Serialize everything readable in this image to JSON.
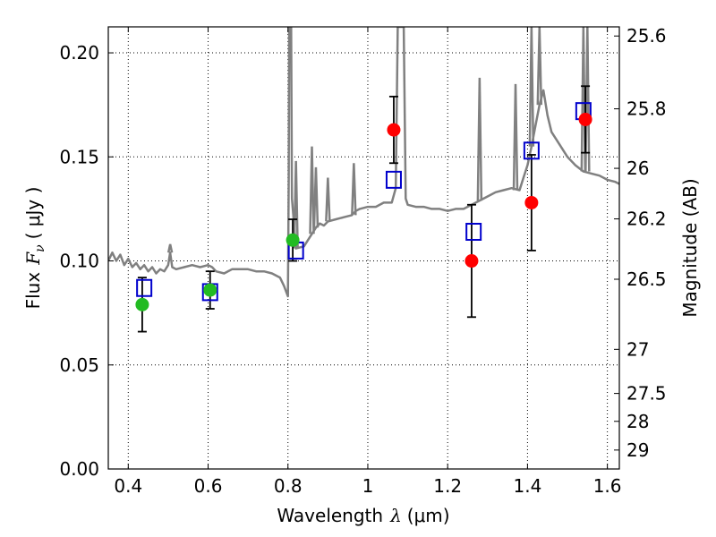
{
  "chart_data": {
    "type": "scatter",
    "xlabel": "Wavelength",
    "xlabel_symbol": "λ",
    "xlabel_unit": "(μm)",
    "ylabel": "Flux",
    "ylabel_symbol": "F",
    "ylabel_subscript": "ν",
    "ylabel_unit": "( μJy )",
    "y2label": "Magnitude (AB)",
    "xlim": [
      0.35,
      1.63
    ],
    "ylim": [
      0.0,
      0.2125
    ],
    "grid": true,
    "x_ticks": [
      0.4,
      0.6,
      0.8,
      1.0,
      1.2,
      1.4,
      1.6
    ],
    "x_tick_labels": [
      "0.4",
      "0.6",
      "0.8",
      "1",
      "1.2",
      "1.4",
      "1.6"
    ],
    "y_ticks": [
      0.0,
      0.05,
      0.1,
      0.15,
      0.2
    ],
    "y_tick_labels": [
      "0.00",
      "0.05",
      "0.10",
      "0.15",
      "0.20"
    ],
    "y2_ticks": [
      {
        "label": "25.6",
        "flux": 0.2081
      },
      {
        "label": "25.8",
        "flux": 0.1731
      },
      {
        "label": "26",
        "flux": 0.1445
      },
      {
        "label": "26.2",
        "flux": 0.1202
      },
      {
        "label": "26.5",
        "flux": 0.0912
      },
      {
        "label": "27",
        "flux": 0.0575
      },
      {
        "label": "27.5",
        "flux": 0.0363
      },
      {
        "label": "28",
        "flux": 0.0229
      },
      {
        "label": "29",
        "flux": 0.0091
      }
    ],
    "series": [
      {
        "name": "model spectrum",
        "kind": "line",
        "color": "#808080",
        "points": [
          [
            0.35,
            0.1
          ],
          [
            0.36,
            0.104
          ],
          [
            0.37,
            0.1
          ],
          [
            0.38,
            0.103
          ],
          [
            0.39,
            0.098
          ],
          [
            0.4,
            0.101
          ],
          [
            0.41,
            0.097
          ],
          [
            0.42,
            0.099
          ],
          [
            0.43,
            0.096
          ],
          [
            0.44,
            0.098
          ],
          [
            0.45,
            0.095
          ],
          [
            0.46,
            0.097
          ],
          [
            0.47,
            0.094
          ],
          [
            0.48,
            0.096
          ],
          [
            0.49,
            0.095
          ],
          [
            0.5,
            0.098
          ],
          [
            0.505,
            0.104
          ],
          [
            0.51,
            0.097
          ],
          [
            0.52,
            0.096
          ],
          [
            0.54,
            0.097
          ],
          [
            0.56,
            0.098
          ],
          [
            0.58,
            0.097
          ],
          [
            0.6,
            0.098
          ],
          [
            0.61,
            0.097
          ],
          [
            0.62,
            0.095
          ],
          [
            0.64,
            0.094
          ],
          [
            0.66,
            0.096
          ],
          [
            0.68,
            0.096
          ],
          [
            0.7,
            0.096
          ],
          [
            0.72,
            0.095
          ],
          [
            0.74,
            0.095
          ],
          [
            0.76,
            0.094
          ],
          [
            0.78,
            0.092
          ],
          [
            0.79,
            0.088
          ],
          [
            0.8,
            0.083
          ],
          [
            0.802,
            0.14
          ],
          [
            0.803,
            0.2125
          ],
          [
            0.808,
            0.2125
          ],
          [
            0.81,
            0.13
          ],
          [
            0.82,
            0.106
          ],
          [
            0.84,
            0.107
          ],
          [
            0.86,
            0.113
          ],
          [
            0.87,
            0.116
          ],
          [
            0.88,
            0.118
          ],
          [
            0.89,
            0.117
          ],
          [
            0.9,
            0.119
          ],
          [
            0.92,
            0.12
          ],
          [
            0.94,
            0.121
          ],
          [
            0.96,
            0.122
          ],
          [
            0.97,
            0.124
          ],
          [
            0.98,
            0.125
          ],
          [
            1.0,
            0.126
          ],
          [
            1.02,
            0.126
          ],
          [
            1.04,
            0.128
          ],
          [
            1.06,
            0.128
          ],
          [
            1.07,
            0.135
          ],
          [
            1.075,
            0.2125
          ],
          [
            1.09,
            0.2125
          ],
          [
            1.095,
            0.13
          ],
          [
            1.1,
            0.127
          ],
          [
            1.12,
            0.126
          ],
          [
            1.14,
            0.126
          ],
          [
            1.16,
            0.125
          ],
          [
            1.18,
            0.125
          ],
          [
            1.2,
            0.124
          ],
          [
            1.22,
            0.125
          ],
          [
            1.24,
            0.125
          ],
          [
            1.26,
            0.127
          ],
          [
            1.28,
            0.129
          ],
          [
            1.3,
            0.131
          ],
          [
            1.32,
            0.133
          ],
          [
            1.34,
            0.134
          ],
          [
            1.36,
            0.135
          ],
          [
            1.38,
            0.134
          ],
          [
            1.39,
            0.14
          ],
          [
            1.4,
            0.146
          ],
          [
            1.41,
            0.155
          ],
          [
            1.42,
            0.165
          ],
          [
            1.43,
            0.175
          ],
          [
            1.44,
            0.182
          ],
          [
            1.45,
            0.17
          ],
          [
            1.46,
            0.162
          ],
          [
            1.48,
            0.156
          ],
          [
            1.5,
            0.15
          ],
          [
            1.52,
            0.146
          ],
          [
            1.54,
            0.143
          ],
          [
            1.56,
            0.142
          ],
          [
            1.58,
            0.141
          ],
          [
            1.6,
            0.139
          ],
          [
            1.62,
            0.138
          ],
          [
            1.63,
            0.137
          ]
        ],
        "spikes": [
          [
            0.505,
            0.108
          ],
          [
            0.82,
            0.148
          ],
          [
            0.86,
            0.155
          ],
          [
            0.87,
            0.145
          ],
          [
            0.9,
            0.14
          ],
          [
            0.965,
            0.147
          ],
          [
            1.28,
            0.188
          ],
          [
            1.37,
            0.185
          ],
          [
            1.41,
            0.2125
          ],
          [
            1.43,
            0.2125
          ],
          [
            1.54,
            0.2125
          ],
          [
            1.55,
            0.2125
          ]
        ]
      },
      {
        "name": "green measurements",
        "kind": "points",
        "color": "#22bb22",
        "x": [
          0.435,
          0.605,
          0.812
        ],
        "y": [
          0.079,
          0.086,
          0.11
        ],
        "yerr": [
          0.013,
          0.009,
          0.01
        ]
      },
      {
        "name": "red measurements",
        "kind": "points",
        "color": "#ff0000",
        "x": [
          1.065,
          1.26,
          1.41,
          1.545
        ],
        "y": [
          0.163,
          0.1,
          0.128,
          0.168
        ],
        "yerr": [
          0.016,
          0.027,
          0.023,
          0.016
        ]
      },
      {
        "name": "model photometry",
        "kind": "squares",
        "color": "#0000cc",
        "x": [
          0.44,
          0.605,
          0.82,
          1.065,
          1.265,
          1.41,
          1.54
        ],
        "y": [
          0.087,
          0.085,
          0.105,
          0.139,
          0.114,
          0.153,
          0.172
        ]
      }
    ]
  }
}
